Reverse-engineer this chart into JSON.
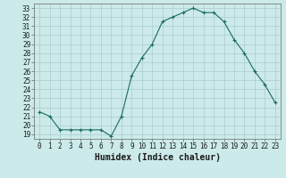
{
  "x": [
    0,
    1,
    2,
    3,
    4,
    5,
    6,
    7,
    8,
    9,
    10,
    11,
    12,
    13,
    14,
    15,
    16,
    17,
    18,
    19,
    20,
    21,
    22,
    23
  ],
  "y": [
    21.5,
    21.0,
    19.5,
    19.5,
    19.5,
    19.5,
    19.5,
    18.8,
    21.0,
    25.5,
    27.5,
    29.0,
    31.5,
    32.0,
    32.5,
    33.0,
    32.5,
    32.5,
    31.5,
    29.5,
    28.0,
    26.0,
    24.5,
    22.5
  ],
  "line_color": "#1a6b5a",
  "marker": "+",
  "marker_size": 3,
  "bg_color": "#cceaea",
  "grid_color": "#aacccc",
  "xlabel": "Humidex (Indice chaleur)",
  "xlim": [
    -0.5,
    23.5
  ],
  "ylim": [
    18.5,
    33.5
  ],
  "yticks": [
    19,
    20,
    21,
    22,
    23,
    24,
    25,
    26,
    27,
    28,
    29,
    30,
    31,
    32,
    33
  ],
  "xticks": [
    0,
    1,
    2,
    3,
    4,
    5,
    6,
    7,
    8,
    9,
    10,
    11,
    12,
    13,
    14,
    15,
    16,
    17,
    18,
    19,
    20,
    21,
    22,
    23
  ],
  "tick_label_fontsize": 5.5,
  "xlabel_fontsize": 7.0
}
